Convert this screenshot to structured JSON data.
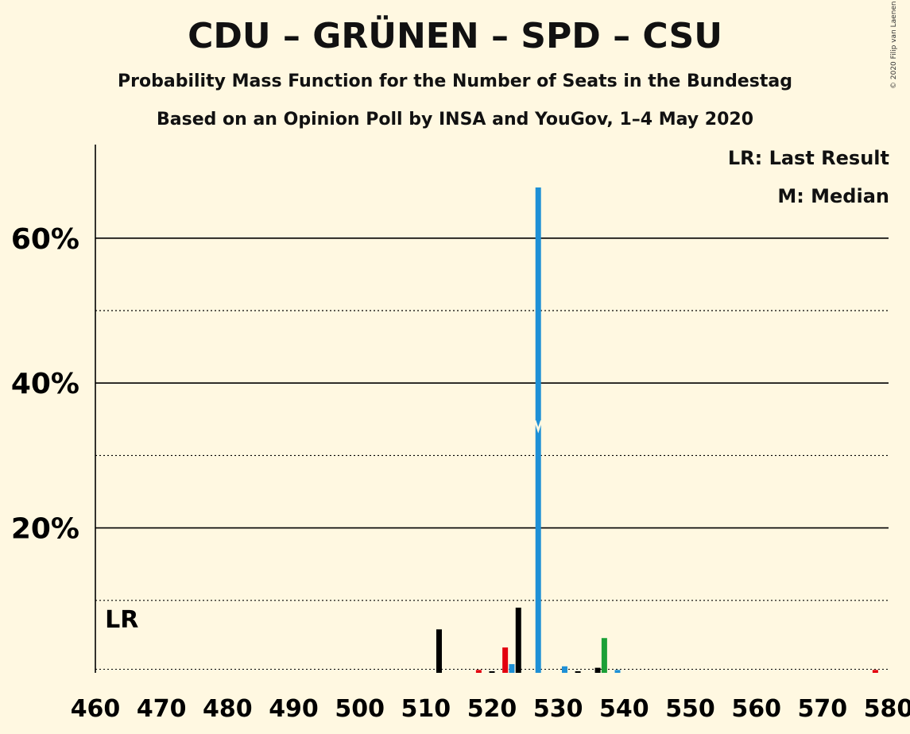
{
  "title": "CDU – GRÜNEN – SPD – CSU",
  "subtitle": "Probability Mass Function for the Number of Seats in the Bundestag",
  "subtitle2": "Based on an Opinion Poll by INSA and YouGov, 1–4 May 2020",
  "copyright": "© 2020 Filip van Laenen",
  "legend": {
    "last_result": "LR: Last Result",
    "median": "M: Median"
  },
  "lr_label": "LR",
  "colors": {
    "background": "#FFF8E1",
    "black": "#000000",
    "blue": "#1E90D6",
    "red": "#E3000F",
    "green": "#1AA037"
  },
  "chart_data": {
    "type": "bar",
    "xlim": [
      460,
      580
    ],
    "ylim": [
      0,
      0.72
    ],
    "xticks": [
      460,
      470,
      480,
      490,
      500,
      510,
      520,
      530,
      540,
      550,
      560,
      570,
      580
    ],
    "yticks_labeled": [
      {
        "value": 0.2,
        "label": "20%"
      },
      {
        "value": 0.4,
        "label": "40%"
      },
      {
        "value": 0.6,
        "label": "60%"
      }
    ],
    "ygrid_dotted": [
      0.1,
      0.3,
      0.5
    ],
    "threshold_line": 0.005,
    "last_result_seats": 464,
    "median_seats": 527,
    "bars": [
      {
        "x": 512,
        "value": 0.06,
        "color": "black"
      },
      {
        "x": 518,
        "value": 0.004,
        "color": "red"
      },
      {
        "x": 520,
        "value": 0.002,
        "color": "black"
      },
      {
        "x": 522,
        "value": 0.035,
        "color": "red"
      },
      {
        "x": 523,
        "value": 0.012,
        "color": "blue"
      },
      {
        "x": 524,
        "value": 0.09,
        "color": "black"
      },
      {
        "x": 527,
        "value": 0.67,
        "color": "blue"
      },
      {
        "x": 531,
        "value": 0.009,
        "color": "blue"
      },
      {
        "x": 533,
        "value": 0.002,
        "color": "black"
      },
      {
        "x": 536,
        "value": 0.007,
        "color": "black"
      },
      {
        "x": 537,
        "value": 0.048,
        "color": "green"
      },
      {
        "x": 539,
        "value": 0.004,
        "color": "blue"
      },
      {
        "x": 578,
        "value": 0.004,
        "color": "red"
      }
    ]
  }
}
